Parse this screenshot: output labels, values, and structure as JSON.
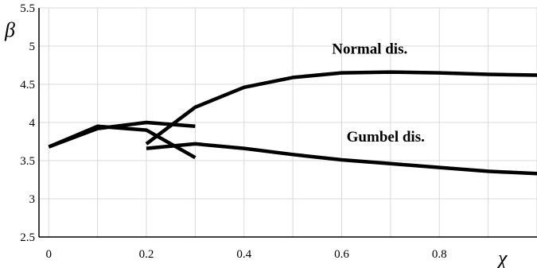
{
  "chart_data": {
    "type": "line",
    "xlabel": "χ",
    "ylabel": "β",
    "xlim": [
      -0.02,
      1.0
    ],
    "ylim": [
      2.5,
      5.5
    ],
    "xticks": [
      "0",
      "0.2",
      "0.4",
      "0.6",
      "0.8"
    ],
    "yticks": [
      "2.5",
      "3",
      "3.5",
      "4",
      "4.5",
      "5",
      "5.5"
    ],
    "xgrid": [
      0,
      0.1,
      0.2,
      0.3,
      0.4,
      0.5,
      0.6,
      0.7,
      0.8,
      0.9,
      1.0
    ],
    "grid": true,
    "annotations": [
      {
        "text": "Normal dis.",
        "x": 0.58,
        "y": 4.9
      },
      {
        "text": "Gumbel dis.",
        "x": 0.61,
        "y": 3.75
      }
    ],
    "series": [
      {
        "x": [
          0.0,
          0.1,
          0.2,
          0.3
        ],
        "y": [
          3.68,
          3.92,
          4.0,
          3.95
        ]
      },
      {
        "x": [
          0.0,
          0.1,
          0.2,
          0.3
        ],
        "y": [
          3.68,
          3.95,
          3.9,
          3.54
        ]
      },
      {
        "x": [
          0.2,
          0.3,
          0.4,
          0.5,
          0.6,
          0.7,
          0.8,
          0.9,
          1.0
        ],
        "y": [
          3.72,
          4.2,
          4.46,
          4.59,
          4.65,
          4.66,
          4.65,
          4.63,
          4.62
        ]
      },
      {
        "x": [
          0.2,
          0.3,
          0.4,
          0.5,
          0.6,
          0.7,
          0.8,
          0.9,
          1.0
        ],
        "y": [
          3.66,
          3.72,
          3.66,
          3.58,
          3.51,
          3.46,
          3.41,
          3.36,
          3.33
        ]
      }
    ]
  }
}
